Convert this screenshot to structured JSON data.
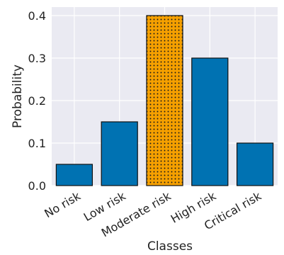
{
  "chart_data": {
    "type": "bar",
    "categories": [
      "No risk",
      "Low risk",
      "Moderate risk",
      "High risk",
      "Critical risk"
    ],
    "values": [
      0.05,
      0.15,
      0.4,
      0.3,
      0.1
    ],
    "xlabel": "Classes",
    "ylabel": "Probability",
    "ylim": [
      0,
      0.42
    ],
    "yticks": [
      "0.0",
      "0.1",
      "0.2",
      "0.3",
      "0.4"
    ],
    "grid": true,
    "highlighted_category": "Moderate risk",
    "highlight_pattern": "dotted",
    "colors": {
      "bar": "#0072B2",
      "highlight": "#F5A000",
      "bar_edge": "#111111",
      "background": "#EAEAF2",
      "grid": "#FFFFFF"
    }
  }
}
